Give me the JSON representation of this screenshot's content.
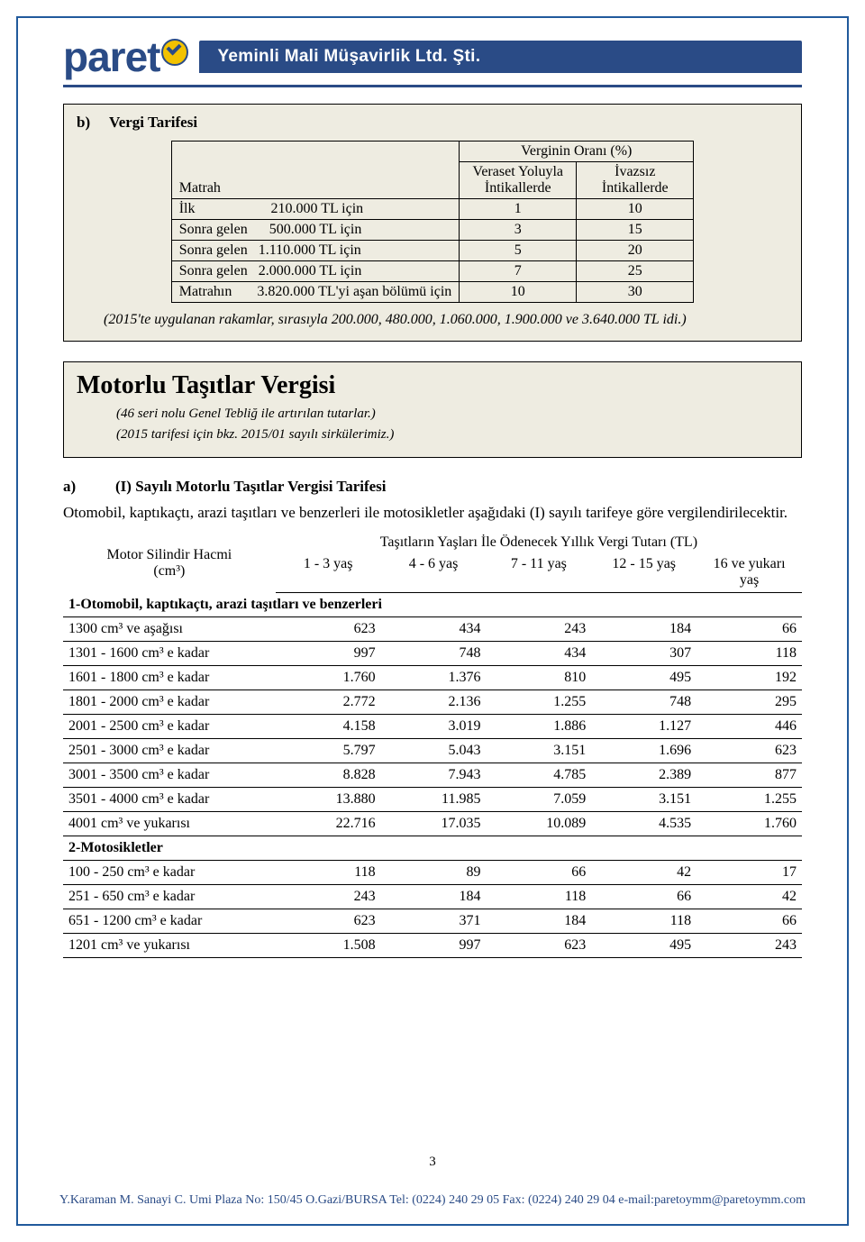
{
  "logo": {
    "text_left": "paret",
    "text_right": ""
  },
  "header_subtitle": "Yeminli Mali Müşavirlik Ltd. Şti.",
  "section_b": {
    "label": "b)",
    "title": "Vergi Tarifesi",
    "table": {
      "span_title": "Verginin Oranı (%)",
      "col_matrah": "Matrah",
      "col_veraset": "Veraset Yoluyla İntikallerde",
      "col_ivazsiz": "İvazsız İntikallerde",
      "rows": [
        {
          "c1": "İlk                     210.000 TL için",
          "v": "1",
          "i": "10"
        },
        {
          "c1": "Sonra gelen      500.000 TL için",
          "v": "3",
          "i": "15"
        },
        {
          "c1": "Sonra gelen   1.110.000 TL için",
          "v": "5",
          "i": "20"
        },
        {
          "c1": "Sonra gelen   2.000.000 TL için",
          "v": "7",
          "i": "25"
        },
        {
          "c1": "Matrahın       3.820.000 TL'yi aşan bölümü için",
          "v": "10",
          "i": "30"
        }
      ]
    },
    "note": "(2015'te uygulanan rakamlar, sırasıyla 200.000, 480.000, 1.060.000, 1.900.000 ve 3.640.000 TL idi.)"
  },
  "motorlu": {
    "title": "Motorlu Taşıtlar Vergisi",
    "sub1": "(46 seri nolu Genel Tebliğ ile artırılan tutarlar.)",
    "sub2": "(2015 tarifesi için bkz. 2015/01 sayılı sirkülerimiz.)"
  },
  "section_a": {
    "label": "a)",
    "title": "(I) Sayılı Motorlu Taşıtlar Vergisi Tarifesi",
    "para": "Otomobil, kaptıkaçtı, arazi taşıtları ve benzerleri ile motosikletler aşağıdaki (I) sayılı tarifeye göre vergilendirilecektir.",
    "table": {
      "left_header_l1": "Motor Silindir Hacmi",
      "left_header_l2": "(cm³)",
      "top_header": "Taşıtların Yaşları İle Ödenecek Yıllık Vergi Tutarı (TL)",
      "cols": [
        "1 - 3 yaş",
        "4 - 6 yaş",
        "7 - 11 yaş",
        "12 - 15 yaş",
        "16 ve yukarı yaş"
      ],
      "group1_title": "1-Otomobil, kaptıkaçtı, arazi taşıtları ve benzerleri",
      "group1_rows": [
        {
          "l": "1300 cm³ ve aşağısı",
          "v": [
            "623",
            "434",
            "243",
            "184",
            "66"
          ]
        },
        {
          "l": "1301 - 1600 cm³ e kadar",
          "v": [
            "997",
            "748",
            "434",
            "307",
            "118"
          ]
        },
        {
          "l": "1601 - 1800 cm³ e kadar",
          "v": [
            "1.760",
            "1.376",
            "810",
            "495",
            "192"
          ]
        },
        {
          "l": "1801 - 2000 cm³ e kadar",
          "v": [
            "2.772",
            "2.136",
            "1.255",
            "748",
            "295"
          ]
        },
        {
          "l": "2001 - 2500 cm³ e kadar",
          "v": [
            "4.158",
            "3.019",
            "1.886",
            "1.127",
            "446"
          ]
        },
        {
          "l": "2501 - 3000 cm³ e kadar",
          "v": [
            "5.797",
            "5.043",
            "3.151",
            "1.696",
            "623"
          ]
        },
        {
          "l": "3001 - 3500 cm³ e kadar",
          "v": [
            "8.828",
            "7.943",
            "4.785",
            "2.389",
            "877"
          ]
        },
        {
          "l": "3501 - 4000 cm³ e kadar",
          "v": [
            "13.880",
            "11.985",
            "7.059",
            "3.151",
            "1.255"
          ]
        },
        {
          "l": "4001 cm³ ve yukarısı",
          "v": [
            "22.716",
            "17.035",
            "10.089",
            "4.535",
            "1.760"
          ]
        }
      ],
      "group2_title": "2-Motosikletler",
      "group2_rows": [
        {
          "l": "100 - 250 cm³ e kadar",
          "v": [
            "118",
            "89",
            "66",
            "42",
            "17"
          ]
        },
        {
          "l": "251 - 650 cm³ e kadar",
          "v": [
            "243",
            "184",
            "118",
            "66",
            "42"
          ]
        },
        {
          "l": "651 - 1200 cm³ e kadar",
          "v": [
            "623",
            "371",
            "184",
            "118",
            "66"
          ]
        },
        {
          "l": "1201 cm³ ve yukarısı",
          "v": [
            "1.508",
            "997",
            "623",
            "495",
            "243"
          ]
        }
      ]
    }
  },
  "page_number": "3",
  "footer": "Y.Karaman M. Sanayi C. Umi Plaza No: 150/45 O.Gazi/BURSA Tel: (0224) 240 29 05 Fax: (0224) 240 29 04 e-mail:paretoymm@paretoymm.com"
}
